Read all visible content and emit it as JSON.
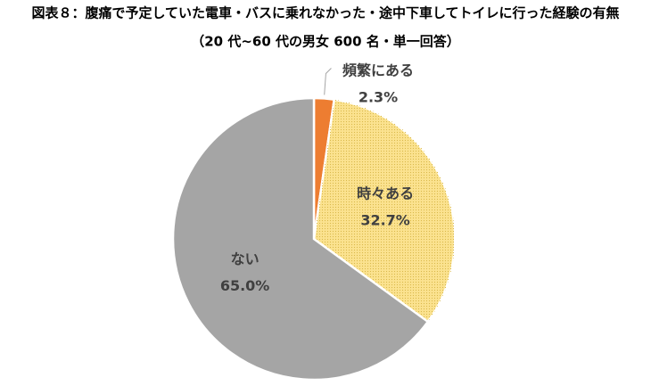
{
  "chart_data": {
    "type": "pie",
    "title": "図表８：腹痛で予定していた電車・バスに乗れなかった・途中下車してトイレに行った経験の有無",
    "subtitle": "（20 代~60 代の男女 600 名・単一回答）",
    "categories": [
      "頻繁にある",
      "時々ある",
      "ない"
    ],
    "values": [
      2.3,
      32.7,
      65.0
    ],
    "value_labels": [
      "2.3%",
      "32.7%",
      "65.0%"
    ],
    "colors": [
      "#ed7d31",
      "#fbe28f",
      "#a5a5a5"
    ]
  }
}
